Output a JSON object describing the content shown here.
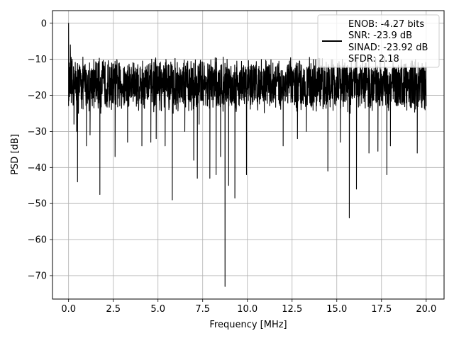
{
  "chart_data": {
    "type": "line",
    "title": "",
    "xlabel": "Frequency [MHz]",
    "ylabel": "PSD [dB]",
    "xlim": [
      -0.9,
      21.0
    ],
    "ylim": [
      -76.5,
      3.5
    ],
    "xticks": [
      0.0,
      2.5,
      5.0,
      7.5,
      10.0,
      12.5,
      15.0,
      17.5,
      20.0
    ],
    "xtick_labels": [
      "0.0",
      "2.5",
      "5.0",
      "7.5",
      "10.0",
      "12.5",
      "15.0",
      "17.5",
      "20.0"
    ],
    "yticks": [
      0,
      -10,
      -20,
      -30,
      -40,
      -50,
      -60,
      -70
    ],
    "ytick_labels": [
      "0",
      "−10",
      "−20",
      "−30",
      "−40",
      "−50",
      "−60",
      "−70"
    ],
    "grid": true,
    "legend_placement": "top-right",
    "legend_entries": [
      "ENOB: -4.27 bits",
      "SNR: -23.9 dB",
      "SINAD: -23.92 dB",
      "SFDR: 2.18"
    ],
    "series": [
      {
        "color": "#000000",
        "x_range": [
          0.0,
          20.0
        ],
        "y_band": [
          -25,
          -9
        ],
        "points": [
          [
            0.0,
            0.0
          ],
          [
            0.05,
            -19
          ],
          [
            0.1,
            -6
          ],
          [
            0.15,
            -22
          ],
          [
            0.2,
            -10
          ],
          [
            0.3,
            -28
          ],
          [
            0.45,
            -30
          ],
          [
            0.5,
            -44
          ],
          [
            0.55,
            -25
          ],
          [
            1.0,
            -34
          ],
          [
            1.2,
            -31
          ],
          [
            1.75,
            -47.5
          ],
          [
            1.8,
            -25
          ],
          [
            2.6,
            -37
          ],
          [
            3.3,
            -33
          ],
          [
            4.1,
            -34
          ],
          [
            4.6,
            -33
          ],
          [
            4.9,
            -32
          ],
          [
            5.4,
            -34
          ],
          [
            5.8,
            -49
          ],
          [
            5.85,
            -25
          ],
          [
            6.5,
            -30
          ],
          [
            7.0,
            -38
          ],
          [
            7.2,
            -43
          ],
          [
            7.3,
            -28
          ],
          [
            7.9,
            -43
          ],
          [
            8.25,
            -42
          ],
          [
            8.5,
            -37
          ],
          [
            8.75,
            -73
          ],
          [
            8.8,
            -20
          ],
          [
            8.95,
            -45
          ],
          [
            9.3,
            -48.5
          ],
          [
            9.35,
            -22
          ],
          [
            9.95,
            -42
          ],
          [
            12.0,
            -34
          ],
          [
            12.8,
            -32
          ],
          [
            13.3,
            -30
          ],
          [
            14.5,
            -41
          ],
          [
            15.2,
            -33
          ],
          [
            15.7,
            -54
          ],
          [
            15.75,
            -25
          ],
          [
            16.1,
            -46
          ],
          [
            16.8,
            -36
          ],
          [
            17.3,
            -35.5
          ],
          [
            17.8,
            -42
          ],
          [
            18.0,
            -34
          ],
          [
            19.5,
            -36
          ],
          [
            20.0,
            -23
          ]
        ]
      }
    ]
  }
}
